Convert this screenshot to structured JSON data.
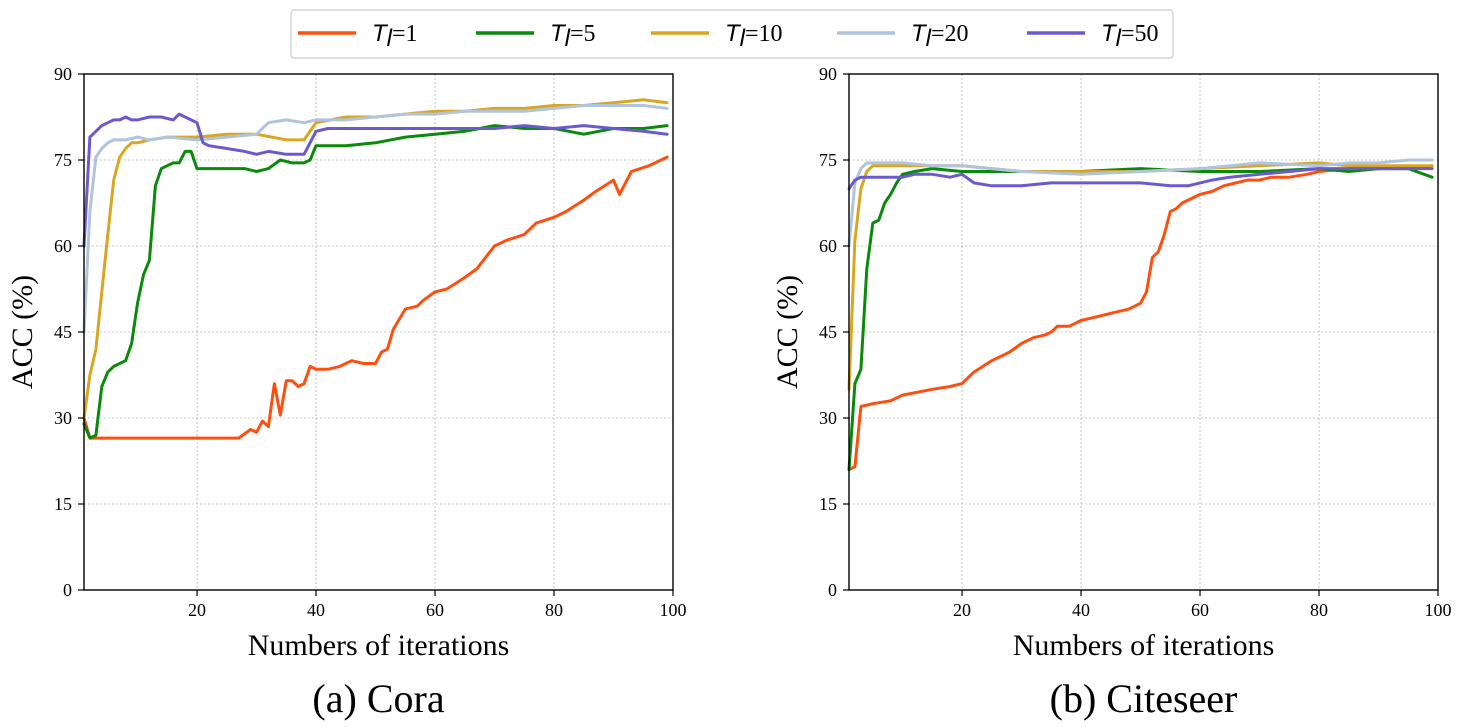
{
  "colors": {
    "T1": "#FF4F0F",
    "T5": "#0A8A0A",
    "T10": "#DAA520",
    "T20": "#B0C4DE",
    "T50": "#6A5ACD",
    "grid": "#999999",
    "axis": "#000000"
  },
  "legend": {
    "entries": [
      {
        "var": "T",
        "sub": "l",
        "eq": "=1",
        "series": "T1"
      },
      {
        "var": "T",
        "sub": "l",
        "eq": "=5",
        "series": "T5"
      },
      {
        "var": "T",
        "sub": "l",
        "eq": "=10",
        "series": "T10"
      },
      {
        "var": "T",
        "sub": "l",
        "eq": "=20",
        "series": "T20"
      },
      {
        "var": "T",
        "sub": "l",
        "eq": "=50",
        "series": "T50"
      }
    ]
  },
  "chart_data": [
    {
      "type": "line",
      "caption": "(a) Cora",
      "xlabel": "Numbers of iterations",
      "ylabel": "ACC (%)",
      "xlim": [
        1,
        100
      ],
      "ylim": [
        0,
        90
      ],
      "xticks": [
        20,
        40,
        60,
        80,
        100
      ],
      "yticks": [
        0,
        15,
        30,
        45,
        60,
        75,
        90
      ],
      "grid": true,
      "series": [
        {
          "name": "T_l=1",
          "key": "T1",
          "x": [
            1,
            2,
            5,
            10,
            15,
            20,
            25,
            27,
            29,
            30,
            31,
            32,
            33,
            34,
            35,
            36,
            37,
            38,
            39,
            40,
            42,
            44,
            46,
            48,
            50,
            51,
            52,
            53,
            55,
            57,
            58,
            60,
            62,
            65,
            67,
            70,
            72,
            75,
            77,
            80,
            82,
            85,
            87,
            90,
            91,
            93,
            96,
            99
          ],
          "y": [
            30,
            26.5,
            26.5,
            26.5,
            26.5,
            26.5,
            26.5,
            26.5,
            28,
            27.5,
            29.5,
            28.5,
            36,
            30.5,
            36.5,
            36.5,
            35.5,
            36,
            39,
            38.5,
            38.5,
            39,
            40,
            39.5,
            39.5,
            41.5,
            42,
            45.5,
            49,
            49.5,
            50.5,
            52,
            52.5,
            54.5,
            56,
            60,
            61,
            62,
            64,
            65,
            66,
            68,
            69.5,
            71.5,
            69,
            73,
            74,
            75.5
          ]
        },
        {
          "name": "T_l=5",
          "key": "T5",
          "x": [
            1,
            2,
            3,
            4,
            5,
            6,
            7,
            8,
            9,
            10,
            11,
            12,
            13,
            14,
            15,
            16,
            17,
            18,
            19,
            20,
            22,
            25,
            28,
            30,
            32,
            34,
            36,
            38,
            39,
            40,
            45,
            50,
            55,
            60,
            65,
            70,
            75,
            80,
            85,
            90,
            95,
            99
          ],
          "y": [
            29,
            26.5,
            27,
            35.5,
            38,
            39,
            39.5,
            40,
            43,
            50,
            55,
            57.5,
            70.5,
            73.5,
            74,
            74.5,
            74.5,
            76.5,
            76.5,
            73.5,
            73.5,
            73.5,
            73.5,
            73,
            73.5,
            75,
            74.5,
            74.5,
            75,
            77.5,
            77.5,
            78,
            79,
            79.5,
            80,
            81,
            80.5,
            80.5,
            79.5,
            80.5,
            80.5,
            81
          ]
        },
        {
          "name": "T_l=10",
          "key": "T10",
          "x": [
            1,
            2,
            3,
            4,
            5,
            6,
            7,
            8,
            9,
            10,
            12,
            15,
            20,
            25,
            30,
            35,
            38,
            40,
            45,
            50,
            55,
            60,
            65,
            70,
            75,
            80,
            85,
            90,
            95,
            99
          ],
          "y": [
            30,
            37.5,
            42,
            52,
            62,
            71.5,
            75.5,
            77,
            78,
            78,
            78.5,
            79,
            79,
            79.5,
            79.5,
            78.5,
            78.5,
            81.5,
            82.5,
            82.5,
            83,
            83.5,
            83.5,
            84,
            84,
            84.5,
            84.5,
            85,
            85.5,
            85
          ]
        },
        {
          "name": "T_l=20",
          "key": "T20",
          "x": [
            1,
            2,
            3,
            4,
            5,
            6,
            8,
            10,
            12,
            15,
            20,
            25,
            30,
            32,
            35,
            38,
            40,
            45,
            50,
            55,
            60,
            65,
            70,
            75,
            80,
            85,
            90,
            95,
            99
          ],
          "y": [
            45,
            66,
            75.5,
            77,
            78,
            78.5,
            78.5,
            79,
            78.5,
            79,
            78.5,
            79,
            79.5,
            81.5,
            82,
            81.5,
            82,
            82,
            82.5,
            83,
            83,
            83.5,
            83.5,
            83.5,
            84,
            84.5,
            84.5,
            84.5,
            84
          ]
        },
        {
          "name": "T_l=50",
          "key": "T50",
          "x": [
            1,
            2,
            3,
            4,
            5,
            6,
            7,
            8,
            9,
            10,
            12,
            14,
            16,
            17,
            18,
            19,
            20,
            21,
            22,
            25,
            28,
            30,
            32,
            35,
            38,
            40,
            42,
            45,
            50,
            55,
            60,
            65,
            70,
            75,
            80,
            85,
            90,
            95,
            99
          ],
          "y": [
            60,
            79,
            80,
            81,
            81.5,
            82,
            82,
            82.5,
            82,
            82,
            82.5,
            82.5,
            82,
            83,
            82.5,
            82,
            81.5,
            78,
            77.5,
            77,
            76.5,
            76,
            76.5,
            76,
            76,
            80,
            80.5,
            80.5,
            80.5,
            80.5,
            80.5,
            80.5,
            80.5,
            81,
            80.5,
            81,
            80.5,
            80,
            79.5
          ]
        }
      ]
    },
    {
      "type": "line",
      "caption": "(b) Citeseer",
      "xlabel": "Numbers of iterations",
      "ylabel": "ACC (%)",
      "xlim": [
        1,
        100
      ],
      "ylim": [
        0,
        90
      ],
      "xticks": [
        20,
        40,
        60,
        80,
        100
      ],
      "yticks": [
        0,
        15,
        30,
        45,
        60,
        75,
        90
      ],
      "grid": true,
      "series": [
        {
          "name": "T_l=1",
          "key": "T1",
          "x": [
            1,
            2,
            3,
            5,
            8,
            10,
            15,
            18,
            20,
            22,
            25,
            28,
            30,
            32,
            34,
            35,
            36,
            38,
            40,
            42,
            44,
            46,
            48,
            50,
            51,
            52,
            53,
            54,
            55,
            56,
            57,
            58,
            60,
            62,
            64,
            66,
            68,
            70,
            72,
            75,
            78,
            80,
            85,
            90,
            95,
            99
          ],
          "y": [
            21,
            21.5,
            32,
            32.5,
            33,
            34,
            35,
            35.5,
            36,
            38,
            40,
            41.5,
            43,
            44,
            44.5,
            45,
            46,
            46,
            47,
            47.5,
            48,
            48.5,
            49,
            50,
            52,
            58,
            59,
            62,
            66,
            66.5,
            67.5,
            68,
            69,
            69.5,
            70.5,
            71,
            71.5,
            71.5,
            72,
            72,
            72.5,
            73,
            73.5,
            73.5,
            73.5,
            74
          ]
        },
        {
          "name": "T_l=5",
          "key": "T5",
          "x": [
            1,
            2,
            3,
            4,
            5,
            6,
            7,
            8,
            9,
            10,
            12,
            15,
            20,
            25,
            30,
            40,
            50,
            60,
            70,
            80,
            85,
            90,
            95,
            99
          ],
          "y": [
            21,
            36,
            38.5,
            56,
            64,
            64.5,
            67.5,
            69,
            71,
            72.5,
            73,
            73.5,
            73,
            73,
            73,
            73,
            73.5,
            73,
            73,
            73.5,
            73,
            73.5,
            73.5,
            72
          ]
        },
        {
          "name": "T_l=10",
          "key": "T10",
          "x": [
            1,
            2,
            3,
            4,
            5,
            6,
            8,
            10,
            15,
            20,
            25,
            30,
            40,
            50,
            60,
            70,
            80,
            85,
            90,
            95,
            99
          ],
          "y": [
            35,
            61,
            70,
            73,
            74,
            74,
            74,
            74,
            74,
            74,
            73.5,
            73,
            73,
            73,
            73.5,
            74,
            74.5,
            74,
            74,
            74,
            74
          ]
        },
        {
          "name": "T_l=20",
          "key": "T20",
          "x": [
            1,
            2,
            3,
            4,
            5,
            8,
            10,
            15,
            20,
            25,
            30,
            40,
            50,
            60,
            70,
            80,
            85,
            90,
            95,
            99
          ],
          "y": [
            60,
            71,
            73.5,
            74.5,
            74.5,
            74.5,
            74.5,
            74,
            74,
            73.5,
            73,
            72.5,
            73,
            73.5,
            74.5,
            74,
            74.5,
            74.5,
            75,
            75
          ]
        },
        {
          "name": "T_l=50",
          "key": "T50",
          "x": [
            1,
            2,
            3,
            5,
            8,
            10,
            12,
            15,
            18,
            20,
            22,
            25,
            28,
            30,
            35,
            40,
            45,
            50,
            55,
            58,
            60,
            62,
            65,
            70,
            75,
            80,
            85,
            90,
            95,
            99
          ],
          "y": [
            70,
            71.5,
            72,
            72,
            72,
            72,
            72.5,
            72.5,
            72,
            72.5,
            71,
            70.5,
            70.5,
            70.5,
            71,
            71,
            71,
            71,
            70.5,
            70.5,
            71,
            71.5,
            72,
            72.5,
            73,
            73.5,
            73.5,
            73.5,
            73.5,
            73.5
          ]
        }
      ]
    }
  ]
}
